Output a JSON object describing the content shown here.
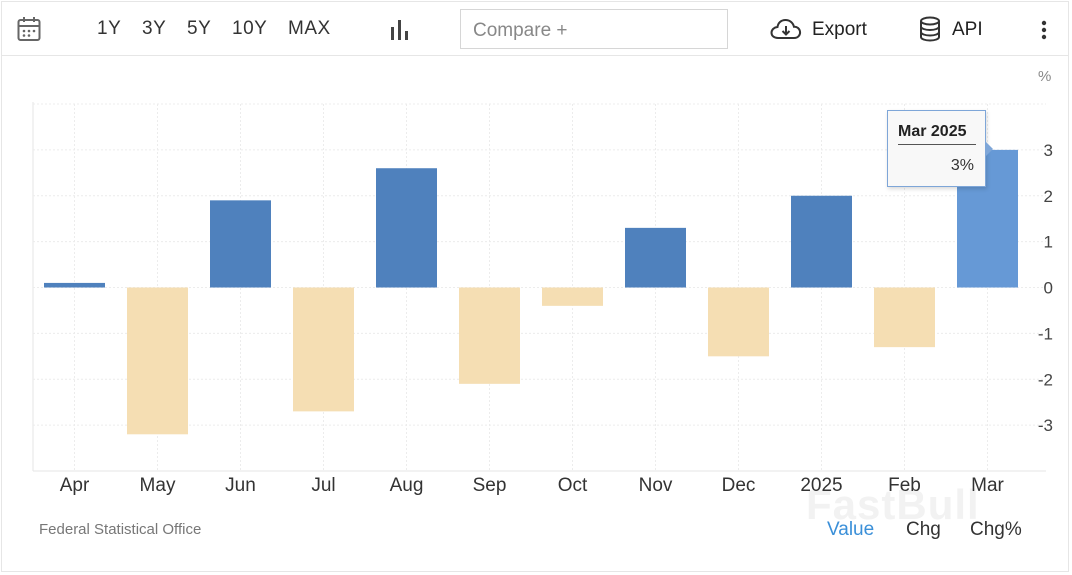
{
  "toolbar": {
    "ranges": [
      "1Y",
      "3Y",
      "5Y",
      "10Y",
      "MAX"
    ],
    "compare_placeholder": "Compare +",
    "export_label": "Export",
    "api_label": "API"
  },
  "icons": {
    "calendar": "calendar-icon",
    "chart_type": "bar-chart-icon",
    "export": "cloud-download-icon",
    "api": "database-icon",
    "more": "more-vertical-icon"
  },
  "colors": {
    "positive": "#4f81bd",
    "negative": "#f5deb3",
    "highlight": "#6699d6",
    "tab_active": "#3a8fd8"
  },
  "chart_data": {
    "type": "bar",
    "categories": [
      "Apr",
      "May",
      "Jun",
      "Jul",
      "Aug",
      "Sep",
      "Oct",
      "Nov",
      "Dec",
      "2025",
      "Feb",
      "Mar"
    ],
    "values": [
      0.1,
      -3.2,
      1.9,
      -2.7,
      2.6,
      -2.1,
      -0.4,
      1.3,
      -1.5,
      2.0,
      -1.3,
      3.0
    ],
    "unit": "%",
    "ylim": [
      -4,
      4
    ],
    "yticks": [
      3,
      2,
      1,
      0,
      -1,
      -2,
      -3
    ],
    "grid": true,
    "highlighted_index": 11
  },
  "tooltip": {
    "title": "Mar 2025",
    "value": "3%"
  },
  "footer": {
    "source": "Federal Statistical Office",
    "tabs": [
      "Value",
      "Chg",
      "Chg%"
    ],
    "active_tab": "Value"
  },
  "watermark": "FastBull"
}
